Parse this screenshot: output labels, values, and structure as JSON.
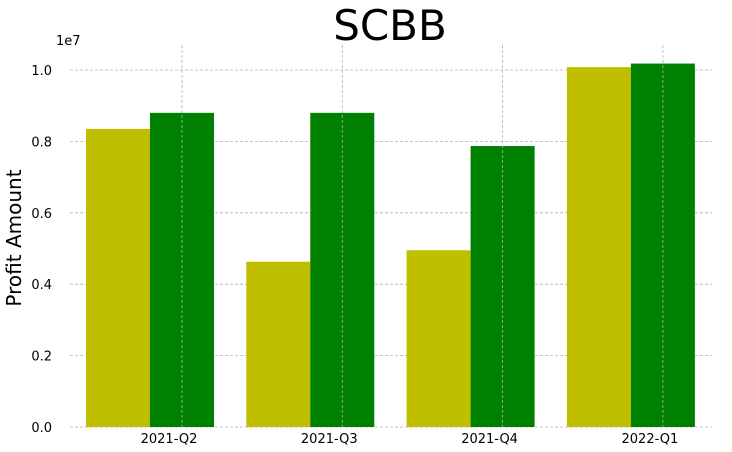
{
  "chart_data": {
    "type": "bar",
    "title": "SCBB",
    "xlabel": "",
    "ylabel": "Profit Amount",
    "y_offset_label": "1e7",
    "y_scale": 10000000,
    "categories": [
      "2021-Q2",
      "2021-Q3",
      "2021-Q4",
      "2022-Q1"
    ],
    "series": [
      {
        "color": "#bfbf00",
        "values": [
          8350000,
          4630000,
          4950000,
          10080000
        ]
      },
      {
        "color": "#008000",
        "values": [
          8800000,
          8800000,
          7870000,
          10180000
        ]
      }
    ],
    "ylim": [
      0,
      10700000
    ],
    "yticks": [
      0,
      2000000,
      4000000,
      6000000,
      8000000,
      10000000
    ],
    "ytick_labels": [
      "0.0",
      "0.2",
      "0.4",
      "0.6",
      "0.8",
      "1.0"
    ],
    "grid": true
  }
}
